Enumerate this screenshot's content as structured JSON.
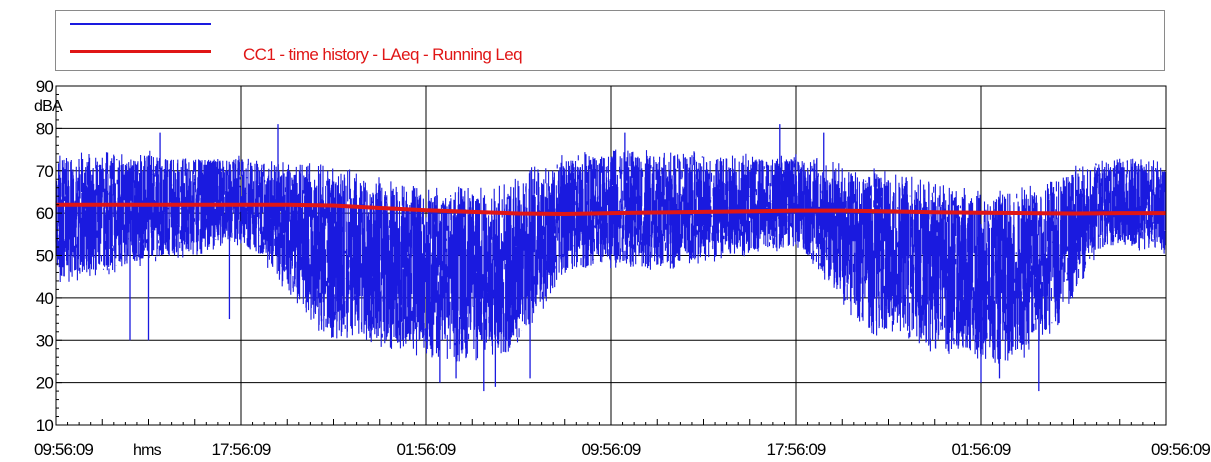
{
  "colors": {
    "series_blue": "#1a1adf",
    "series_red": "#e01616",
    "grid": "#000000",
    "frame": "#000000"
  },
  "chart_data": {
    "type": "line",
    "ylabel": "dBA",
    "xlabel": "hms",
    "ylim": [
      10,
      90
    ],
    "yticks": [
      10,
      20,
      30,
      40,
      50,
      60,
      70,
      80,
      90
    ],
    "xticks": [
      "09:56:09",
      "17:56:09",
      "01:56:09",
      "09:56:09",
      "17:56:09",
      "01:56:09",
      "09:56:09"
    ],
    "xlim_hours": [
      0,
      48
    ],
    "grid": true,
    "legend_position": "top",
    "series": [
      {
        "name": "",
        "color": "#1a1adf",
        "style": "dense measured noise trace",
        "envelope": [
          {
            "t": 0,
            "min": 43,
            "max": 74
          },
          {
            "t": 2,
            "min": 45,
            "max": 75
          },
          {
            "t": 4,
            "min": 48,
            "max": 75
          },
          {
            "t": 6,
            "min": 50,
            "max": 74
          },
          {
            "t": 8,
            "min": 52,
            "max": 74
          },
          {
            "t": 9,
            "min": 48,
            "max": 73
          },
          {
            "t": 10,
            "min": 40,
            "max": 72
          },
          {
            "t": 11,
            "min": 33,
            "max": 72
          },
          {
            "t": 12,
            "min": 30,
            "max": 71
          },
          {
            "t": 13,
            "min": 30,
            "max": 70
          },
          {
            "t": 14,
            "min": 28,
            "max": 69
          },
          {
            "t": 15,
            "min": 27,
            "max": 67
          },
          {
            "t": 16,
            "min": 26,
            "max": 66
          },
          {
            "t": 17,
            "min": 25,
            "max": 67
          },
          {
            "t": 18,
            "min": 24,
            "max": 66
          },
          {
            "t": 19,
            "min": 26,
            "max": 66
          },
          {
            "t": 20,
            "min": 28,
            "max": 70
          },
          {
            "t": 21,
            "min": 35,
            "max": 72
          },
          {
            "t": 22,
            "min": 45,
            "max": 74
          },
          {
            "t": 24,
            "min": 47,
            "max": 75
          },
          {
            "t": 26,
            "min": 46,
            "max": 75
          },
          {
            "t": 28,
            "min": 48,
            "max": 75
          },
          {
            "t": 30,
            "min": 50,
            "max": 74
          },
          {
            "t": 32,
            "min": 51,
            "max": 74
          },
          {
            "t": 33,
            "min": 46,
            "max": 73
          },
          {
            "t": 34,
            "min": 38,
            "max": 72
          },
          {
            "t": 35,
            "min": 32,
            "max": 71
          },
          {
            "t": 36,
            "min": 30,
            "max": 70
          },
          {
            "t": 37,
            "min": 29,
            "max": 69
          },
          {
            "t": 38,
            "min": 27,
            "max": 67
          },
          {
            "t": 39,
            "min": 26,
            "max": 66
          },
          {
            "t": 40,
            "min": 25,
            "max": 66
          },
          {
            "t": 41,
            "min": 24,
            "max": 66
          },
          {
            "t": 42,
            "min": 26,
            "max": 67
          },
          {
            "t": 43,
            "min": 30,
            "max": 69
          },
          {
            "t": 44,
            "min": 40,
            "max": 71
          },
          {
            "t": 45,
            "min": 50,
            "max": 73
          },
          {
            "t": 46,
            "min": 52,
            "max": 74
          },
          {
            "t": 48,
            "min": 50,
            "max": 72
          }
        ],
        "notable_dips": [
          {
            "t": 3.2,
            "y": 30
          },
          {
            "t": 4.0,
            "y": 30
          },
          {
            "t": 7.5,
            "y": 35
          },
          {
            "t": 16.6,
            "y": 20
          },
          {
            "t": 17.3,
            "y": 21
          },
          {
            "t": 18.5,
            "y": 18
          },
          {
            "t": 19.0,
            "y": 19
          },
          {
            "t": 20.5,
            "y": 21
          },
          {
            "t": 40.0,
            "y": 20
          },
          {
            "t": 40.8,
            "y": 21
          },
          {
            "t": 42.5,
            "y": 18
          }
        ],
        "notable_peaks": [
          {
            "t": 4.5,
            "y": 79
          },
          {
            "t": 9.6,
            "y": 81
          },
          {
            "t": 31.3,
            "y": 81
          },
          {
            "t": 24.6,
            "y": 79
          },
          {
            "t": 33.2,
            "y": 79
          }
        ]
      },
      {
        "name": "CC1 - time history - LAeq - Running Leq",
        "color": "#e01616",
        "style": "smooth thick line",
        "points": [
          {
            "t": 0,
            "y": 62.0
          },
          {
            "t": 4,
            "y": 62.0
          },
          {
            "t": 8,
            "y": 62.0
          },
          {
            "t": 10,
            "y": 62.0
          },
          {
            "t": 12,
            "y": 61.8
          },
          {
            "t": 14,
            "y": 61.2
          },
          {
            "t": 16,
            "y": 60.7
          },
          {
            "t": 18,
            "y": 60.3
          },
          {
            "t": 20,
            "y": 59.9
          },
          {
            "t": 22,
            "y": 59.8
          },
          {
            "t": 24,
            "y": 60.0
          },
          {
            "t": 28,
            "y": 60.3
          },
          {
            "t": 32,
            "y": 60.6
          },
          {
            "t": 34,
            "y": 60.6
          },
          {
            "t": 36,
            "y": 60.4
          },
          {
            "t": 38,
            "y": 60.2
          },
          {
            "t": 40,
            "y": 60.1
          },
          {
            "t": 42,
            "y": 60.0
          },
          {
            "t": 44,
            "y": 59.9
          },
          {
            "t": 46,
            "y": 60.0
          },
          {
            "t": 48,
            "y": 60.0
          }
        ]
      }
    ]
  }
}
